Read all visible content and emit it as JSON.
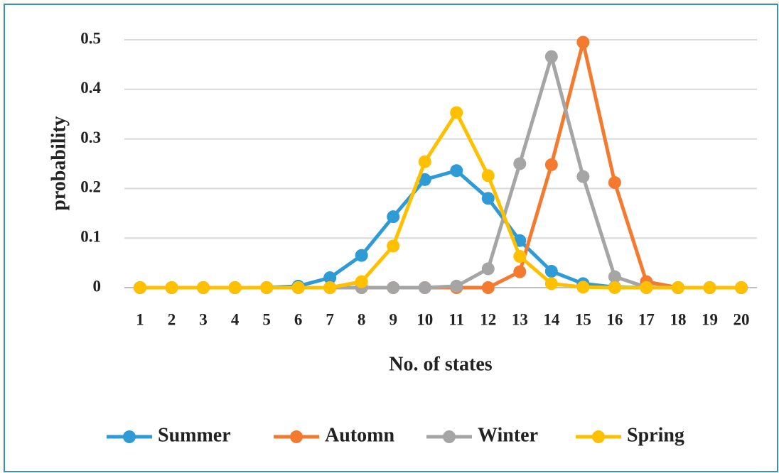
{
  "chart_data": {
    "type": "line",
    "x_label": "No. of states",
    "y_label": "probability",
    "categories": [
      1,
      2,
      3,
      4,
      5,
      6,
      7,
      8,
      9,
      10,
      11,
      12,
      13,
      14,
      15,
      16,
      17,
      18,
      19,
      20
    ],
    "series": [
      {
        "name": "Summer",
        "color": "#2e9bd6",
        "values": [
          0,
          0,
          0,
          0,
          0,
          0.003,
          0.02,
          0.065,
          0.143,
          0.218,
          0.236,
          0.18,
          0.095,
          0.033,
          0.008,
          0.001,
          0,
          0,
          0,
          0
        ]
      },
      {
        "name": "Automn",
        "color": "#f47a30",
        "values": [
          0,
          0,
          0,
          0,
          0,
          0,
          0,
          0,
          0,
          0,
          0,
          0,
          0.032,
          0.248,
          0.495,
          0.212,
          0.012,
          0,
          0,
          0
        ]
      },
      {
        "name": "Winter",
        "color": "#a5a5a5",
        "values": [
          0,
          0,
          0,
          0,
          0,
          0,
          0,
          0,
          0,
          0,
          0.003,
          0.038,
          0.25,
          0.466,
          0.224,
          0.022,
          0.001,
          0,
          0,
          0
        ]
      },
      {
        "name": "Spring",
        "color": "#ffc000",
        "values": [
          0,
          0,
          0,
          0,
          0,
          0,
          0,
          0.012,
          0.084,
          0.254,
          0.353,
          0.226,
          0.063,
          0.008,
          0.001,
          0,
          0,
          0,
          0,
          0
        ]
      }
    ],
    "ylim": [
      0,
      0.5
    ],
    "yticks": [
      0,
      0.1,
      0.2,
      0.3,
      0.4,
      0.5
    ],
    "grid": true,
    "legend": "bottom"
  }
}
